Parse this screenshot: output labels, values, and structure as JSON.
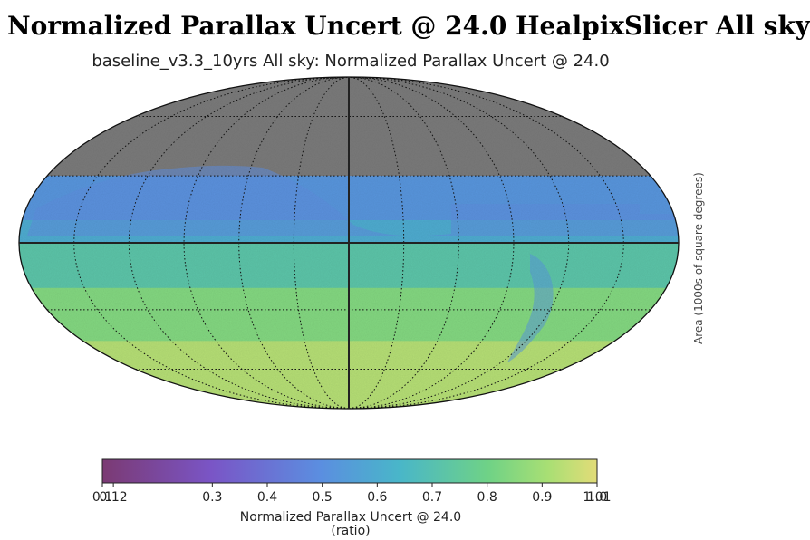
{
  "header": {
    "title": "Normalized Parallax Uncert @ 24.0 HealpixSlicer All sky"
  },
  "side_label": "Area (1000s of square degrees)",
  "chart_data": {
    "type": "heatmap",
    "projection": "mollweide",
    "title": "baseline_v3.3_10yrs All sky: Normalized Parallax Uncert @ 24.0",
    "colorbar": {
      "label": "Normalized Parallax Uncert @ 24.0",
      "unit": "(ratio)",
      "range": [
        0.1,
        1.0
      ],
      "colormap": "viridis",
      "ticks": [
        0.1,
        0.12,
        0.3,
        0.4,
        0.5,
        0.6,
        0.7,
        0.8,
        0.9,
        1.0,
        1.01
      ],
      "tick_labels": [
        "0.1",
        "0.12",
        "0.3",
        "0.4",
        "0.5",
        "0.6",
        "0.7",
        "0.8",
        "0.9",
        "1.0",
        "1.01"
      ]
    },
    "value_bands": [
      {
        "dec_from": 90,
        "dec_to": 30,
        "value": null
      },
      {
        "dec_from": 30,
        "dec_to": 10,
        "value": 0.52
      },
      {
        "dec_from": 10,
        "dec_to": 0,
        "value": 0.6
      },
      {
        "dec_from": 0,
        "dec_to": -20,
        "value": 0.72
      },
      {
        "dec_from": -20,
        "dec_to": -45,
        "value": 0.84
      },
      {
        "dec_from": -45,
        "dec_to": -90,
        "value": 0.93
      }
    ],
    "grid": true,
    "no_data_color": "#7a7a7a"
  }
}
